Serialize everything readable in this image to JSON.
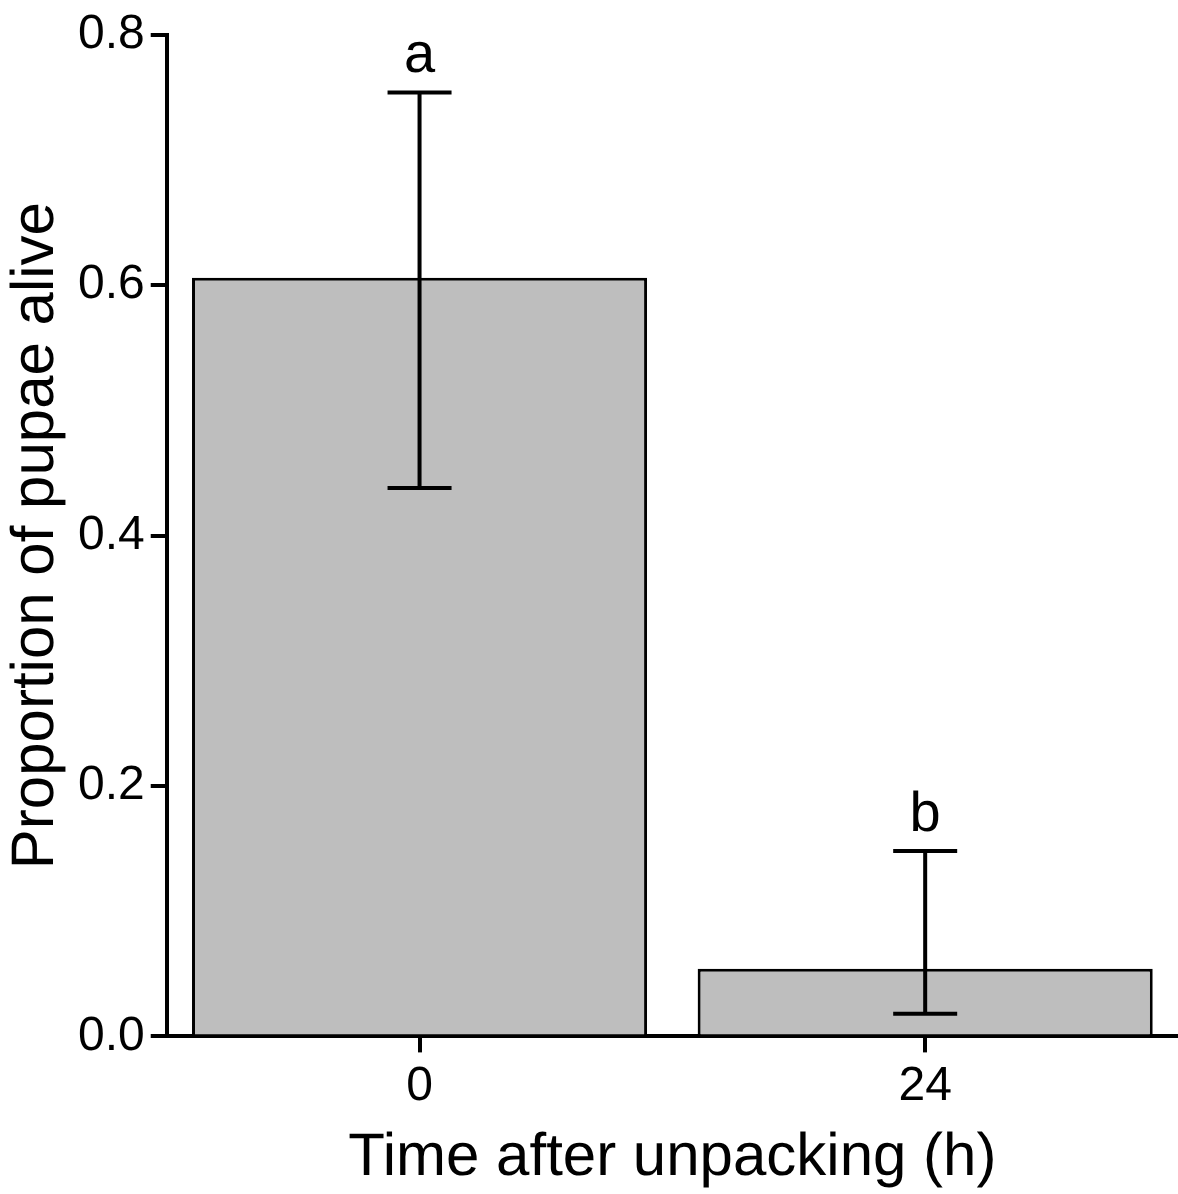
{
  "chart_data": {
    "type": "bar",
    "xlabel": "Time after unpacking (h)",
    "ylabel": "Proportion of pupae alive",
    "categories": [
      "0",
      "24"
    ],
    "values": [
      0.606,
      0.054
    ],
    "errors": [
      [
        0.438,
        0.754
      ],
      [
        0.018,
        0.148
      ]
    ],
    "color": "#bebebe",
    "ylim": [
      0,
      0.8
    ],
    "yticks": [
      {
        "value": 0,
        "label": "0.0"
      },
      {
        "value": 0.2,
        "label": "0.2"
      },
      {
        "value": 0.4,
        "label": "0.4"
      },
      {
        "value": 0.6,
        "label": "0.6"
      },
      {
        "value": 0.8,
        "label": "0.8"
      }
    ],
    "annotations": [
      {
        "text": "a",
        "x": "0",
        "y": 0.754
      },
      {
        "text": "b",
        "x": "24",
        "y": 0.148
      }
    ],
    "grid": false,
    "legend": false
  }
}
